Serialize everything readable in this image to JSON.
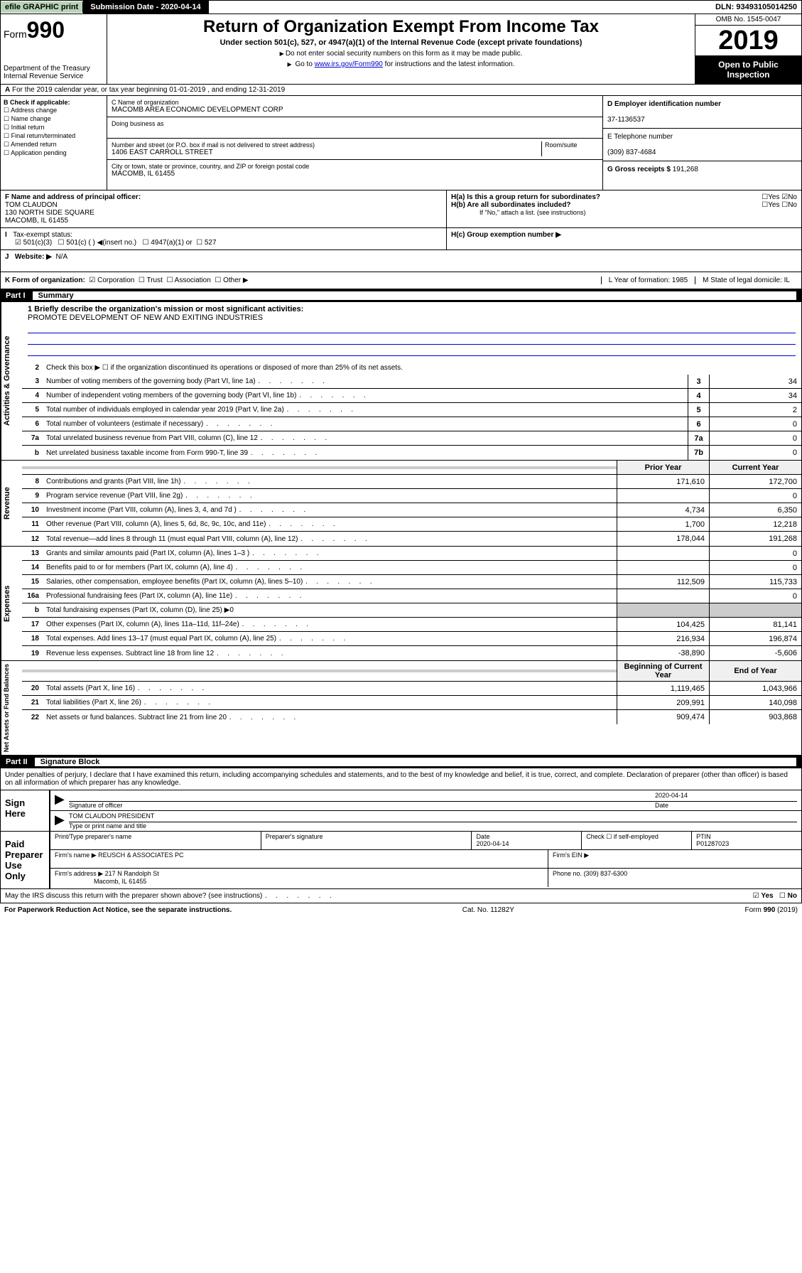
{
  "topbar": {
    "efile": "efile GRAPHIC print",
    "submission_label": "Submission Date - 2020-04-14",
    "dln": "DLN: 93493105014250"
  },
  "header": {
    "form_prefix": "Form",
    "form_no": "990",
    "dept": "Department of the Treasury\nInternal Revenue Service",
    "title": "Return of Organization Exempt From Income Tax",
    "subtitle": "Under section 501(c), 527, or 4947(a)(1) of the Internal Revenue Code (except private foundations)",
    "note1": "Do not enter social security numbers on this form as it may be made public.",
    "note2_pre": "Go to ",
    "note2_link": "www.irs.gov/Form990",
    "note2_post": " for instructions and the latest information.",
    "omb": "OMB No. 1545-0047",
    "year": "2019",
    "open": "Open to Public Inspection"
  },
  "row_a": "For the 2019 calendar year, or tax year beginning 01-01-2019   , and ending 12-31-2019",
  "section_b": {
    "label": "B Check if applicable:",
    "opts": [
      "Address change",
      "Name change",
      "Initial return",
      "Final return/terminated",
      "Amended return",
      "Application pending"
    ]
  },
  "section_c": {
    "name_label": "C Name of organization",
    "name": "MACOMB AREA ECONOMIC DEVELOPMENT CORP",
    "dba_label": "Doing business as",
    "addr_label": "Number and street (or P.O. box if mail is not delivered to street address)",
    "room_label": "Room/suite",
    "addr": "1406 EAST CARROLL STREET",
    "city_label": "City or town, state or province, country, and ZIP or foreign postal code",
    "city": "MACOMB, IL  61455"
  },
  "section_d": {
    "label": "D Employer identification number",
    "ein": "37-1136537"
  },
  "section_e": {
    "label": "E Telephone number",
    "phone": "(309) 837-4684"
  },
  "section_g": {
    "label": "G Gross receipts $",
    "amount": "191,268"
  },
  "section_f": {
    "label": "F  Name and address of principal officer:",
    "name": "TOM CLAUDON",
    "addr1": "130 NORTH SIDE SQUARE",
    "addr2": "MACOMB, IL  61455"
  },
  "section_h": {
    "ha": "H(a)  Is this a group return for subordinates?",
    "hb": "H(b)  Are all subordinates included?",
    "hb_note": "If \"No,\" attach a list. (see instructions)",
    "hc": "H(c)  Group exemption number ▶"
  },
  "section_i": {
    "label": "Tax-exempt status:",
    "opt1": "501(c)(3)",
    "opt2": "501(c) (  ) ◀(insert no.)",
    "opt3": "4947(a)(1) or",
    "opt4": "527"
  },
  "section_j": {
    "label": "Website: ▶",
    "val": "N/A"
  },
  "section_k": {
    "label": "K Form of organization:",
    "opts": [
      "Corporation",
      "Trust",
      "Association",
      "Other ▶"
    ],
    "l": "L Year of formation: 1985",
    "m": "M State of legal domicile: IL"
  },
  "part1": {
    "num": "Part I",
    "title": "Summary"
  },
  "mission": {
    "label": "1  Briefly describe the organization's mission or most significant activities:",
    "text": "PROMOTE DEVELOPMENT OF NEW AND EXITING INDUSTRIES"
  },
  "line2": "Check this box ▶ ☐  if the organization discontinued its operations or disposed of more than 25% of its net assets.",
  "gov_lines": [
    {
      "n": "3",
      "d": "Number of voting members of the governing body (Part VI, line 1a)",
      "b": "3",
      "v": "34"
    },
    {
      "n": "4",
      "d": "Number of independent voting members of the governing body (Part VI, line 1b)",
      "b": "4",
      "v": "34"
    },
    {
      "n": "5",
      "d": "Total number of individuals employed in calendar year 2019 (Part V, line 2a)",
      "b": "5",
      "v": "2"
    },
    {
      "n": "6",
      "d": "Total number of volunteers (estimate if necessary)",
      "b": "6",
      "v": "0"
    },
    {
      "n": "7a",
      "d": "Total unrelated business revenue from Part VIII, column (C), line 12",
      "b": "7a",
      "v": "0"
    },
    {
      "n": "b",
      "d": "Net unrelated business taxable income from Form 990-T, line 39",
      "b": "7b",
      "v": "0"
    }
  ],
  "cols": {
    "prior": "Prior Year",
    "current": "Current Year"
  },
  "rev_lines": [
    {
      "n": "8",
      "d": "Contributions and grants (Part VIII, line 1h)",
      "p": "171,610",
      "c": "172,700"
    },
    {
      "n": "9",
      "d": "Program service revenue (Part VIII, line 2g)",
      "p": "",
      "c": "0"
    },
    {
      "n": "10",
      "d": "Investment income (Part VIII, column (A), lines 3, 4, and 7d )",
      "p": "4,734",
      "c": "6,350"
    },
    {
      "n": "11",
      "d": "Other revenue (Part VIII, column (A), lines 5, 6d, 8c, 9c, 10c, and 11e)",
      "p": "1,700",
      "c": "12,218"
    },
    {
      "n": "12",
      "d": "Total revenue—add lines 8 through 11 (must equal Part VIII, column (A), line 12)",
      "p": "178,044",
      "c": "191,268"
    }
  ],
  "exp_lines": [
    {
      "n": "13",
      "d": "Grants and similar amounts paid (Part IX, column (A), lines 1–3 )",
      "p": "",
      "c": "0"
    },
    {
      "n": "14",
      "d": "Benefits paid to or for members (Part IX, column (A), line 4)",
      "p": "",
      "c": "0"
    },
    {
      "n": "15",
      "d": "Salaries, other compensation, employee benefits (Part IX, column (A), lines 5–10)",
      "p": "112,509",
      "c": "115,733"
    },
    {
      "n": "16a",
      "d": "Professional fundraising fees (Part IX, column (A), line 11e)",
      "p": "",
      "c": "0"
    },
    {
      "n": "b",
      "d": "Total fundraising expenses (Part IX, column (D), line 25) ▶0",
      "p": null,
      "c": null
    },
    {
      "n": "17",
      "d": "Other expenses (Part IX, column (A), lines 11a–11d, 11f–24e)",
      "p": "104,425",
      "c": "81,141"
    },
    {
      "n": "18",
      "d": "Total expenses. Add lines 13–17 (must equal Part IX, column (A), line 25)",
      "p": "216,934",
      "c": "196,874"
    },
    {
      "n": "19",
      "d": "Revenue less expenses. Subtract line 18 from line 12",
      "p": "-38,890",
      "c": "-5,606"
    }
  ],
  "cols2": {
    "begin": "Beginning of Current Year",
    "end": "End of Year"
  },
  "na_lines": [
    {
      "n": "20",
      "d": "Total assets (Part X, line 16)",
      "p": "1,119,465",
      "c": "1,043,966"
    },
    {
      "n": "21",
      "d": "Total liabilities (Part X, line 26)",
      "p": "209,991",
      "c": "140,098"
    },
    {
      "n": "22",
      "d": "Net assets or fund balances. Subtract line 21 from line 20",
      "p": "909,474",
      "c": "903,868"
    }
  ],
  "part2": {
    "num": "Part II",
    "title": "Signature Block"
  },
  "penalty": "Under penalties of perjury, I declare that I have examined this return, including accompanying schedules and statements, and to the best of my knowledge and belief, it is true, correct, and complete. Declaration of preparer (other than officer) is based on all information of which preparer has any knowledge.",
  "sign": {
    "here": "Sign Here",
    "sig_label": "Signature of officer",
    "date": "2020-04-14",
    "date_label": "Date",
    "name": "TOM CLAUDON  PRESIDENT",
    "name_label": "Type or print name and title"
  },
  "prep": {
    "label": "Paid Preparer Use Only",
    "h1": "Print/Type preparer's name",
    "h2": "Preparer's signature",
    "h3": "Date",
    "h3v": "2020-04-14",
    "h4": "Check ☐ if self-employed",
    "h5": "PTIN",
    "h5v": "P01287023",
    "firm_label": "Firm's name    ▶",
    "firm": "REUSCH & ASSOCIATES PC",
    "ein_label": "Firm's EIN ▶",
    "addr_label": "Firm's address ▶",
    "addr": "217 N Randolph St",
    "addr2": "Macomb, IL  61455",
    "phone_label": "Phone no.",
    "phone": "(309) 837-6300"
  },
  "footer": {
    "q": "May the IRS discuss this return with the preparer shown above? (see instructions)",
    "yes": "Yes",
    "no": "No"
  },
  "bottom": {
    "l": "For Paperwork Reduction Act Notice, see the separate instructions.",
    "m": "Cat. No. 11282Y",
    "r": "Form 990 (2019)"
  },
  "vtabs": {
    "gov": "Activities & Governance",
    "rev": "Revenue",
    "exp": "Expenses",
    "na": "Net Assets or Fund Balances"
  }
}
